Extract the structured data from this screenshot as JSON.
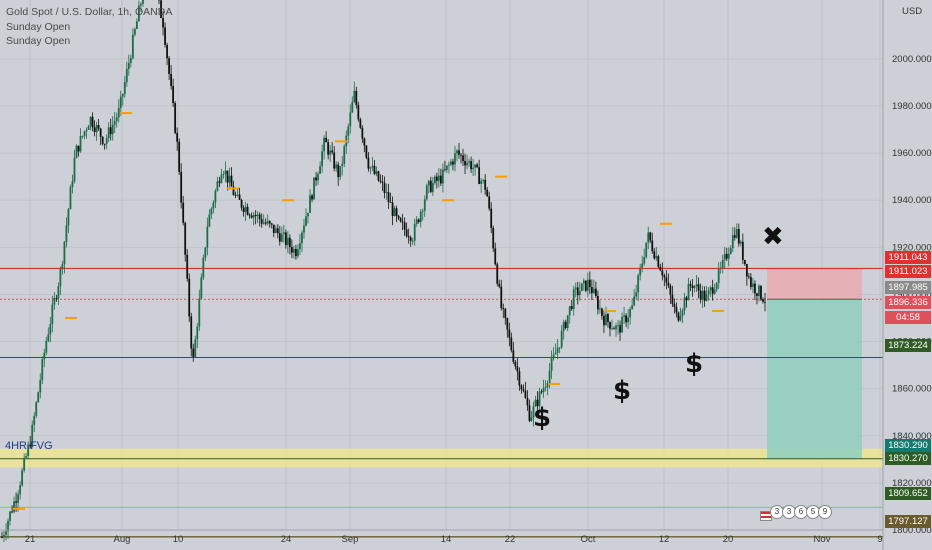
{
  "legend": {
    "title": "Gold Spot / U.S. Dollar, 1h, OANDA",
    "line1": "Sunday Open",
    "line2": "Sunday Open"
  },
  "currency": "USD",
  "fvg_label": "4HR FVG",
  "symbols": {
    "dollar": "$",
    "cross": "✖"
  },
  "colors": {
    "background": "#cdd0d6",
    "red_line": "#e03030",
    "green_line": "#2f5c24",
    "fvg_fill": "#f0e88a",
    "tp_fill": "#8fcfc0",
    "sl_fill": "#e9aab0",
    "candle_up": "#1d6b4a",
    "candle_down": "#111111",
    "sunday_open": "#f5a000"
  },
  "badges": [
    {
      "value": "1911.043",
      "color": "#e03030"
    },
    {
      "value": "1911.023",
      "color": "#e03030"
    },
    {
      "value": "1897.985",
      "color": "#8a8a8a"
    },
    {
      "value": "1896.336",
      "color": "#e0505a"
    },
    {
      "value": "04:58",
      "color": "#e0505a"
    },
    {
      "value": "1873.224",
      "color": "#2f5c24"
    },
    {
      "value": "1830.290",
      "color": "#147a6e"
    },
    {
      "value": "1830.270",
      "color": "#2f5c24"
    },
    {
      "value": "1809.652",
      "color": "#2f5c24"
    },
    {
      "value": "1797.127",
      "color": "#6b5b2a"
    }
  ],
  "events": [
    "3",
    "3",
    "6",
    "5",
    "9"
  ],
  "chart_data": {
    "type": "candlestick",
    "ylim": [
      1800,
      2025
    ],
    "y_ticks": [
      2000,
      1980,
      1960,
      1940,
      1920,
      1900,
      1880,
      1860,
      1840,
      1820,
      1800
    ],
    "y_tick_labels": [
      "2000.000",
      "1980.000",
      "1960.000",
      "1940.000",
      "1920.000",
      "1900.000",
      "1880.000",
      "1860.000",
      "1840.000",
      "1820.000",
      "1800.000"
    ],
    "x_ticks": [
      "21",
      "Aug",
      "10",
      "24",
      "Sep",
      "14",
      "22",
      "Oct",
      "12",
      "20",
      "Nov",
      "9"
    ],
    "price_path": [
      1797,
      1815,
      1840,
      1880,
      1910,
      1960,
      1975,
      1965,
      1978,
      2010,
      2040,
      2015,
      1960,
      1870,
      1930,
      1955,
      1940,
      1935,
      1930,
      1925,
      1918,
      1940,
      1965,
      1950,
      1985,
      1955,
      1945,
      1930,
      1925,
      1945,
      1950,
      1960,
      1955,
      1945,
      1895,
      1870,
      1848,
      1862,
      1880,
      1900,
      1905,
      1890,
      1885,
      1895,
      1925,
      1910,
      1890,
      1905,
      1898,
      1910,
      1928,
      1905,
      1898
    ],
    "horizontal_levels": [
      {
        "price": 1911.043,
        "style": "red"
      },
      {
        "price": 1897.985,
        "style": "dotted"
      },
      {
        "price": 1873.224,
        "style": "green"
      },
      {
        "price": 1809.652,
        "style": "green-thin"
      },
      {
        "price": 1797.127,
        "style": "olive"
      }
    ],
    "fvg_zone": [
      1826.5,
      1834.5
    ],
    "position": {
      "entry": 1897.985,
      "stop_loss": 1911.043,
      "take_profit": 1830.29
    },
    "sunday_open_markers": [
      {
        "date_index": 0,
        "price": 1809
      },
      {
        "date_index": 1,
        "price": 1890
      },
      {
        "date_index": 2,
        "price": 1977
      },
      {
        "date_index": 3,
        "price": 1945
      },
      {
        "date_index": 4,
        "price": 1940
      },
      {
        "date_index": 5,
        "price": 1965
      },
      {
        "date_index": 6,
        "price": 1940
      },
      {
        "date_index": 7,
        "price": 1950
      },
      {
        "date_index": 8,
        "price": 1862
      },
      {
        "date_index": 9,
        "price": 1893
      },
      {
        "date_index": 10,
        "price": 1930
      },
      {
        "date_index": 11,
        "price": 1893
      }
    ]
  }
}
